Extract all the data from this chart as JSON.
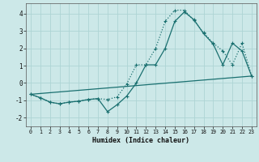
{
  "xlabel": "Humidex (Indice chaleur)",
  "bg_color": "#cce8e8",
  "grid_color": "#aed4d4",
  "line_color": "#1a7070",
  "xlim": [
    -0.5,
    23.5
  ],
  "ylim": [
    -2.5,
    4.6
  ],
  "xticks": [
    0,
    1,
    2,
    3,
    4,
    5,
    6,
    7,
    8,
    9,
    10,
    11,
    12,
    13,
    14,
    15,
    16,
    17,
    18,
    19,
    20,
    21,
    22,
    23
  ],
  "yticks": [
    -2,
    -1,
    0,
    1,
    2,
    3,
    4
  ],
  "line_dotted": {
    "x": [
      0,
      1,
      2,
      3,
      4,
      5,
      6,
      7,
      8,
      9,
      10,
      11,
      12,
      13,
      14,
      15,
      16,
      17,
      18,
      19,
      20,
      21,
      22,
      23
    ],
    "y": [
      -0.65,
      -0.85,
      -1.1,
      -1.2,
      -1.1,
      -1.05,
      -0.95,
      -0.9,
      -0.95,
      -0.8,
      -0.05,
      1.05,
      1.05,
      2.0,
      3.55,
      4.2,
      4.2,
      3.6,
      2.9,
      2.3,
      1.85,
      1.05,
      2.3,
      0.4
    ]
  },
  "line_solid": {
    "x": [
      0,
      1,
      2,
      3,
      4,
      5,
      6,
      7,
      8,
      9,
      10,
      11,
      12,
      13,
      14,
      15,
      16,
      17,
      18,
      19,
      20,
      21,
      22,
      23
    ],
    "y": [
      -0.65,
      -0.85,
      -1.1,
      -1.2,
      -1.1,
      -1.05,
      -0.95,
      -0.9,
      -1.65,
      -1.25,
      -0.75,
      0.0,
      1.05,
      1.05,
      2.0,
      3.55,
      4.1,
      3.65,
      2.85,
      2.25,
      1.05,
      2.3,
      1.85,
      0.4
    ]
  },
  "line_straight": {
    "x": [
      0,
      23
    ],
    "y": [
      -0.65,
      0.4
    ]
  }
}
